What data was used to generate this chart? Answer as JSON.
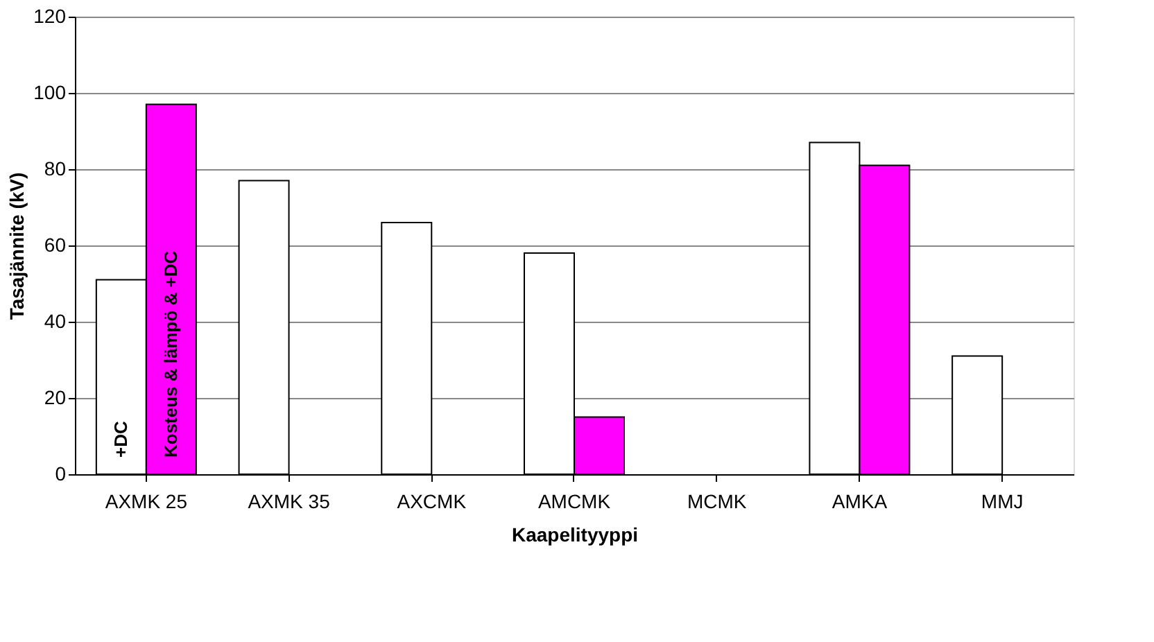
{
  "chart_data": {
    "type": "bar",
    "xlabel": "Kaapelityyppi",
    "ylabel": "Tasajännite (kV)",
    "categories": [
      "AXMK 25",
      "AXMK 35",
      "AXCMK",
      "AMCMK",
      "MCMK",
      "AMKA",
      "MMJ"
    ],
    "series": [
      {
        "name": "+DC",
        "color": "#ffffff",
        "values": [
          51,
          77,
          66,
          58,
          null,
          87,
          31
        ]
      },
      {
        "name": "Kosteus & lämpö & +DC",
        "color": "#ff00ff",
        "values": [
          97,
          null,
          null,
          15,
          null,
          81,
          null
        ]
      }
    ],
    "ylim": [
      0,
      120
    ],
    "yticks": [
      0,
      20,
      40,
      60,
      80,
      100,
      120
    ],
    "grid": "y",
    "legend": false
  }
}
